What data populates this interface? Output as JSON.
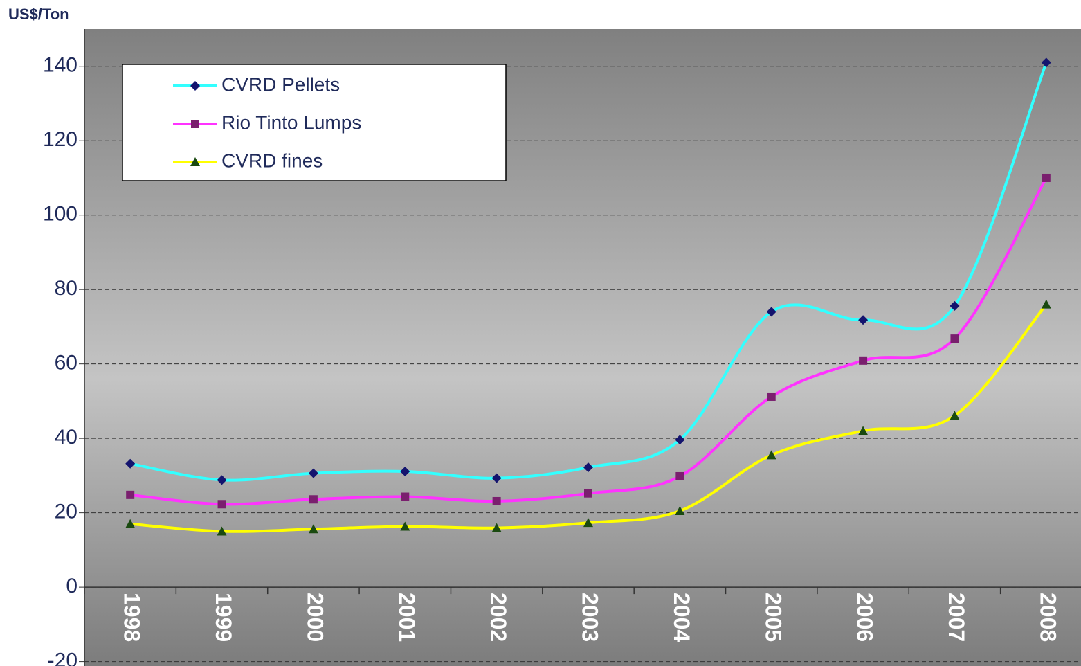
{
  "chart_data": {
    "type": "line",
    "y_label": "US$/Ton",
    "categories": [
      "1998",
      "1999",
      "2000",
      "2001",
      "2002",
      "2003",
      "2004",
      "2005",
      "2006",
      "2007",
      "2008"
    ],
    "series": [
      {
        "name": "CVRD Pellets",
        "color": "#33ffff",
        "marker": "diamond",
        "marker_color": "#14146e",
        "values": [
          33.2,
          28.8,
          30.6,
          31.1,
          29.3,
          32.2,
          39.6,
          74,
          71.8,
          75.6,
          141
        ]
      },
      {
        "name": "Rio Tinto Lumps",
        "color": "#ff33ff",
        "marker": "square",
        "marker_color": "#7a1f6e",
        "values": [
          24.8,
          22.3,
          23.6,
          24.3,
          23.1,
          25.2,
          29.8,
          51.2,
          60.9,
          66.8,
          110
        ]
      },
      {
        "name": "CVRD fines",
        "color": "#ffff00",
        "marker": "triangle",
        "marker_color": "#1a4a10",
        "values": [
          17,
          15,
          15.6,
          16.3,
          15.9,
          17.3,
          20.5,
          35.5,
          42,
          46.1,
          76
        ]
      }
    ],
    "ylim": [
      -20,
      150
    ],
    "yticks": [
      -20,
      0,
      20,
      40,
      60,
      80,
      100,
      120,
      140
    ],
    "grid": true,
    "smooth": true,
    "legend": "upper left"
  }
}
